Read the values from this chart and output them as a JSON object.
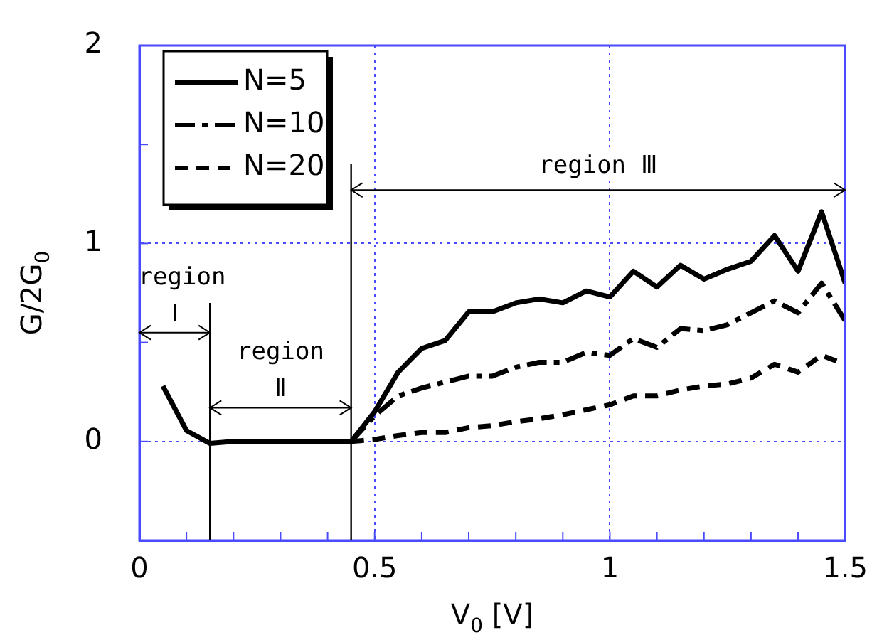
{
  "chart_data": {
    "type": "line",
    "xlabel": "V$_{0}$ [V]",
    "ylabel": "G/2G$_{0}$",
    "xlim": [
      0,
      1.5
    ],
    "ylim": [
      -0.5,
      2
    ],
    "xticks": [
      0,
      {
        "value": 0.1,
        "label": null
      },
      {
        "value": 0.2,
        "label": null
      },
      {
        "value": 0.3,
        "label": null
      },
      {
        "value": 0.4,
        "label": null
      },
      0.5,
      {
        "value": 0.6,
        "label": null
      },
      {
        "value": 0.7,
        "label": null
      },
      {
        "value": 0.8,
        "label": null
      },
      {
        "value": 0.9,
        "label": null
      },
      1,
      {
        "value": 1.1,
        "label": null
      },
      {
        "value": 1.2,
        "label": null
      },
      {
        "value": 1.3,
        "label": null
      },
      {
        "value": 1.4,
        "label": null
      },
      1.5
    ],
    "yticks": [
      {
        "value": -0.5,
        "label": null
      },
      0,
      {
        "value": 0.5,
        "label": null
      },
      1,
      {
        "value": 1.5,
        "label": null
      },
      2
    ],
    "grid": true,
    "legend": "top left",
    "marker": "none",
    "series": [
      {
        "name": "N=5",
        "color": "#000000",
        "line_style": "solid",
        "x": [
          0.05,
          0.1,
          0.15,
          0.2,
          0.25,
          0.3,
          0.35,
          0.4,
          0.45,
          0.5,
          0.55,
          0.6,
          0.65,
          0.7,
          0.75,
          0.8,
          0.85,
          0.9,
          0.95,
          1.0,
          1.05,
          1.1,
          1.15,
          1.2,
          1.25,
          1.3,
          1.35,
          1.4,
          1.45,
          1.5
        ],
        "values": [
          0.28,
          0.055,
          -0.01,
          0,
          0,
          0,
          0,
          0,
          0,
          0.15,
          0.35,
          0.47,
          0.51,
          0.655,
          0.655,
          0.7,
          0.72,
          0.7,
          0.76,
          0.73,
          0.86,
          0.78,
          0.89,
          0.82,
          0.87,
          0.91,
          1.04,
          0.86,
          1.16,
          0.8
        ]
      },
      {
        "name": "N=10",
        "color": "#000000",
        "line_style": "dashed",
        "x": [
          0.45,
          0.5,
          0.55,
          0.6,
          0.65,
          0.7,
          0.75,
          0.8,
          0.85,
          0.9,
          0.95,
          1.0,
          1.05,
          1.1,
          1.15,
          1.2,
          1.25,
          1.3,
          1.35,
          1.4,
          1.45,
          1.5
        ],
        "values": [
          0,
          0.13,
          0.23,
          0.27,
          0.3,
          0.33,
          0.33,
          0.375,
          0.4,
          0.4,
          0.45,
          0.435,
          0.52,
          0.475,
          0.57,
          0.56,
          0.59,
          0.65,
          0.71,
          0.65,
          0.8,
          0.61
        ]
      },
      {
        "name": "N=20",
        "color": "#000000",
        "line_style": "dashed",
        "x": [
          0.45,
          0.5,
          0.55,
          0.6,
          0.65,
          0.7,
          0.75,
          0.8,
          0.85,
          0.9,
          0.95,
          1.0,
          1.05,
          1.1,
          1.15,
          1.2,
          1.25,
          1.3,
          1.35,
          1.4,
          1.45,
          1.5
        ],
        "values": [
          0,
          0.01,
          0.03,
          0.045,
          0.045,
          0.07,
          0.08,
          0.1,
          0.115,
          0.135,
          0.16,
          0.185,
          0.23,
          0.23,
          0.26,
          0.28,
          0.29,
          0.32,
          0.39,
          0.35,
          0.435,
          0.39
        ]
      }
    ],
    "ref_lines": [
      {
        "axis": "x",
        "value": 0.15,
        "color": "#000000"
      },
      {
        "axis": "x",
        "value": 0.45,
        "color": "#000000"
      }
    ],
    "annotations": [
      "region Ⅰ",
      "region Ⅱ",
      "region Ⅲ"
    ]
  }
}
